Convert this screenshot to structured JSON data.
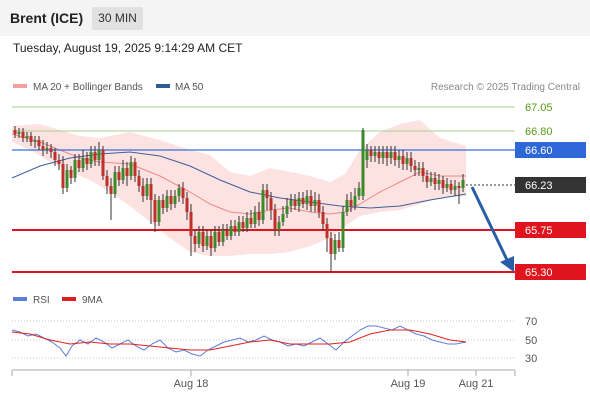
{
  "header": {
    "title": "Brent (ICE)",
    "interval": "30 MIN"
  },
  "timestamp": "Tuesday, August 19, 2025 9:14:29 AM CET",
  "legend": {
    "items": [
      {
        "label": "MA 20 + Bollinger Bands",
        "color": "#f4a0a0"
      },
      {
        "label": "MA 50",
        "color": "#2e5b9a"
      }
    ],
    "credit": "Research © 2025 Trading Central"
  },
  "rsi_legend": {
    "items": [
      {
        "label": "RSI",
        "color": "#5b7fd6"
      },
      {
        "label": "9MA",
        "color": "#e02020"
      }
    ]
  },
  "colors": {
    "candle_up": "#3a8a2a",
    "candle_down": "#c0302a",
    "support": "#e0141e",
    "resistance_line": "#3a6fd8",
    "target_green": "#a9d08e",
    "arrow": "#2a5fa8",
    "bollinger_fill": "#fde2e2"
  },
  "chart_data": {
    "type": "candlestick",
    "price_levels": [
      {
        "label": "67.05",
        "value": 67.05,
        "style": "green-line",
        "text_color": "#5a9a1a"
      },
      {
        "label": "66.80",
        "value": 66.8,
        "style": "green-line",
        "text_color": "#5a9a1a"
      },
      {
        "label": "66.60",
        "value": 66.6,
        "style": "blue-tag",
        "text_color": "#ffffff",
        "bg": "#2e67d8"
      },
      {
        "label": "66.23",
        "value": 66.23,
        "style": "current-tag",
        "text_color": "#ffffff",
        "bg": "#333333"
      },
      {
        "label": "65.75",
        "value": 65.75,
        "style": "red-tag",
        "text_color": "#ffffff",
        "bg": "#e0141e"
      },
      {
        "label": "65.30",
        "value": 65.3,
        "style": "red-tag",
        "text_color": "#ffffff",
        "bg": "#e0141e"
      }
    ],
    "x_tick_labels": [
      "Aug 18",
      "Aug 19",
      "Aug 21"
    ],
    "rsi_tick_labels": [
      "70",
      "50",
      "30"
    ],
    "forecast": {
      "from": 66.23,
      "to": 65.3,
      "direction": "down"
    }
  }
}
